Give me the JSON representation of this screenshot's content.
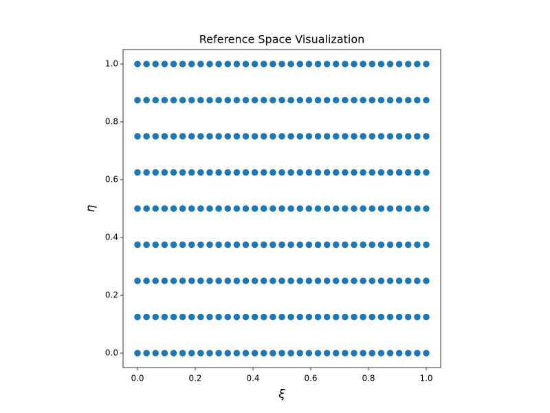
{
  "chart_data": {
    "type": "scatter",
    "title": "Reference Space Visualization",
    "xlabel": "ξ",
    "ylabel": "η",
    "x": [
      0,
      0.03125,
      0.0625,
      0.09375,
      0.125,
      0.15625,
      0.1875,
      0.21875,
      0.25,
      0.28125,
      0.3125,
      0.34375,
      0.375,
      0.40625,
      0.4375,
      0.46875,
      0.5,
      0.53125,
      0.5625,
      0.59375,
      0.625,
      0.65625,
      0.6875,
      0.71875,
      0.75,
      0.78125,
      0.8125,
      0.84375,
      0.875,
      0.90625,
      0.9375,
      0.96875,
      1
    ],
    "series": [
      {
        "color": "#1f77b4",
        "values": [
          0,
          0,
          0,
          0,
          0,
          0,
          0,
          0,
          0,
          0,
          0,
          0,
          0,
          0,
          0,
          0,
          0,
          0,
          0,
          0,
          0,
          0,
          0,
          0,
          0,
          0,
          0,
          0,
          0,
          0,
          0,
          0,
          0
        ]
      },
      {
        "color": "#1f77b4",
        "values": [
          0.125,
          0.125,
          0.125,
          0.125,
          0.125,
          0.125,
          0.125,
          0.125,
          0.125,
          0.125,
          0.125,
          0.125,
          0.125,
          0.125,
          0.125,
          0.125,
          0.125,
          0.125,
          0.125,
          0.125,
          0.125,
          0.125,
          0.125,
          0.125,
          0.125,
          0.125,
          0.125,
          0.125,
          0.125,
          0.125,
          0.125,
          0.125,
          0.125
        ]
      },
      {
        "color": "#1f77b4",
        "values": [
          0.25,
          0.25,
          0.25,
          0.25,
          0.25,
          0.25,
          0.25,
          0.25,
          0.25,
          0.25,
          0.25,
          0.25,
          0.25,
          0.25,
          0.25,
          0.25,
          0.25,
          0.25,
          0.25,
          0.25,
          0.25,
          0.25,
          0.25,
          0.25,
          0.25,
          0.25,
          0.25,
          0.25,
          0.25,
          0.25,
          0.25,
          0.25,
          0.25
        ]
      },
      {
        "color": "#1f77b4",
        "values": [
          0.375,
          0.375,
          0.375,
          0.375,
          0.375,
          0.375,
          0.375,
          0.375,
          0.375,
          0.375,
          0.375,
          0.375,
          0.375,
          0.375,
          0.375,
          0.375,
          0.375,
          0.375,
          0.375,
          0.375,
          0.375,
          0.375,
          0.375,
          0.375,
          0.375,
          0.375,
          0.375,
          0.375,
          0.375,
          0.375,
          0.375,
          0.375,
          0.375
        ]
      },
      {
        "color": "#1f77b4",
        "values": [
          0.5,
          0.5,
          0.5,
          0.5,
          0.5,
          0.5,
          0.5,
          0.5,
          0.5,
          0.5,
          0.5,
          0.5,
          0.5,
          0.5,
          0.5,
          0.5,
          0.5,
          0.5,
          0.5,
          0.5,
          0.5,
          0.5,
          0.5,
          0.5,
          0.5,
          0.5,
          0.5,
          0.5,
          0.5,
          0.5,
          0.5,
          0.5,
          0.5
        ]
      },
      {
        "color": "#1f77b4",
        "values": [
          0.625,
          0.625,
          0.625,
          0.625,
          0.625,
          0.625,
          0.625,
          0.625,
          0.625,
          0.625,
          0.625,
          0.625,
          0.625,
          0.625,
          0.625,
          0.625,
          0.625,
          0.625,
          0.625,
          0.625,
          0.625,
          0.625,
          0.625,
          0.625,
          0.625,
          0.625,
          0.625,
          0.625,
          0.625,
          0.625,
          0.625,
          0.625,
          0.625
        ]
      },
      {
        "color": "#1f77b4",
        "values": [
          0.75,
          0.75,
          0.75,
          0.75,
          0.75,
          0.75,
          0.75,
          0.75,
          0.75,
          0.75,
          0.75,
          0.75,
          0.75,
          0.75,
          0.75,
          0.75,
          0.75,
          0.75,
          0.75,
          0.75,
          0.75,
          0.75,
          0.75,
          0.75,
          0.75,
          0.75,
          0.75,
          0.75,
          0.75,
          0.75,
          0.75,
          0.75,
          0.75
        ]
      },
      {
        "color": "#1f77b4",
        "values": [
          0.875,
          0.875,
          0.875,
          0.875,
          0.875,
          0.875,
          0.875,
          0.875,
          0.875,
          0.875,
          0.875,
          0.875,
          0.875,
          0.875,
          0.875,
          0.875,
          0.875,
          0.875,
          0.875,
          0.875,
          0.875,
          0.875,
          0.875,
          0.875,
          0.875,
          0.875,
          0.875,
          0.875,
          0.875,
          0.875,
          0.875,
          0.875,
          0.875
        ]
      },
      {
        "color": "#1f77b4",
        "values": [
          1,
          1,
          1,
          1,
          1,
          1,
          1,
          1,
          1,
          1,
          1,
          1,
          1,
          1,
          1,
          1,
          1,
          1,
          1,
          1,
          1,
          1,
          1,
          1,
          1,
          1,
          1,
          1,
          1,
          1,
          1,
          1,
          1
        ]
      }
    ],
    "xlim": [
      -0.05,
      1.05
    ],
    "ylim": [
      -0.05,
      1.05
    ],
    "xticks": [
      {
        "value": 0,
        "label": "0.0"
      },
      0.2,
      0.4,
      0.6,
      0.8,
      {
        "value": 1,
        "label": "1.0"
      }
    ],
    "yticks": [
      {
        "value": 0,
        "label": "0.0"
      },
      0.2,
      0.4,
      0.6,
      0.8,
      {
        "value": 1,
        "label": "1.0"
      }
    ],
    "grid": false
  }
}
